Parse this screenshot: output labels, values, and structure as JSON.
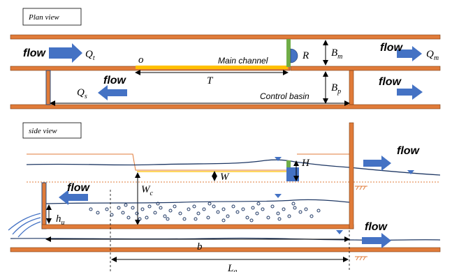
{
  "views": {
    "plan_title": "Plan view",
    "side_title": "side view"
  },
  "plan": {
    "flow_inlet": "flow",
    "q_inlet": "Qt",
    "origin": "o",
    "main_channel": "Main channel",
    "r_label": "R",
    "bm_label": "Bm",
    "flow_outlet_top": "flow",
    "q_outlet": "Qm",
    "flow_basin_left": "flow",
    "qs_label": "Qs",
    "t_label": "T",
    "control_basin": "Control basin",
    "bp_label": "Bp",
    "flow_basin_right": "flow"
  },
  "side": {
    "h_label": "H",
    "w_label": "W",
    "wc_label": "Wc",
    "flow_top_right": "flow",
    "flow_left": "flow",
    "hu_label": "hu",
    "flow_bottom_right": "flow",
    "b_label": "b",
    "la_label": "La"
  },
  "colors": {
    "wall": "#e07b39",
    "arrow": "#4472c4",
    "weir": "#70ad47",
    "crest": "#ffc000",
    "water": "#1f3864",
    "gate": "#4472c4"
  }
}
